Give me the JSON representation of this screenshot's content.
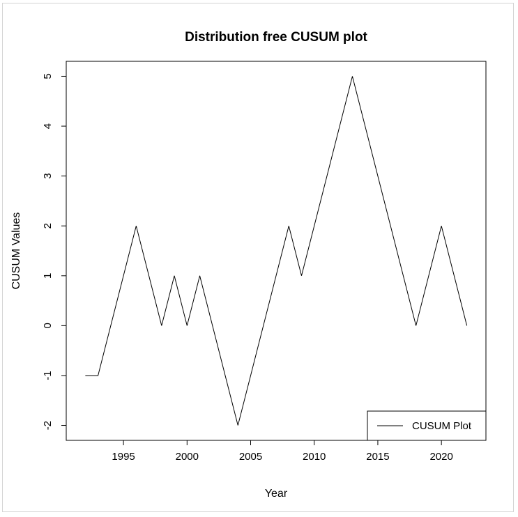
{
  "chart_data": {
    "type": "line",
    "title": "Distribution free CUSUM plot",
    "xlabel": "Year",
    "ylabel": "CUSUM Values",
    "xlim": [
      1990.5,
      2023.5
    ],
    "ylim": [
      -2.3,
      5.3
    ],
    "x_ticks": [
      1995,
      2000,
      2005,
      2010,
      2015,
      2020
    ],
    "y_ticks": [
      -2,
      -1,
      0,
      1,
      2,
      3,
      4,
      5
    ],
    "grid": false,
    "legend_position": "bottom-right",
    "series": [
      {
        "name": "CUSUM Plot",
        "color": "#000000",
        "x": [
          1992,
          1993,
          1994,
          1995,
          1996,
          1997,
          1998,
          1999,
          2000,
          2001,
          2002,
          2003,
          2004,
          2005,
          2006,
          2007,
          2008,
          2009,
          2010,
          2011,
          2012,
          2013,
          2014,
          2015,
          2016,
          2017,
          2018,
          2019,
          2020,
          2021,
          2022
        ],
        "y": [
          -1,
          -1,
          0,
          1,
          2,
          1,
          0,
          1,
          0,
          1,
          0,
          -1,
          -2,
          -1,
          0,
          1,
          2,
          1,
          2,
          3,
          4,
          5,
          4,
          3,
          2,
          1,
          0,
          1,
          2,
          1,
          0
        ]
      }
    ]
  }
}
